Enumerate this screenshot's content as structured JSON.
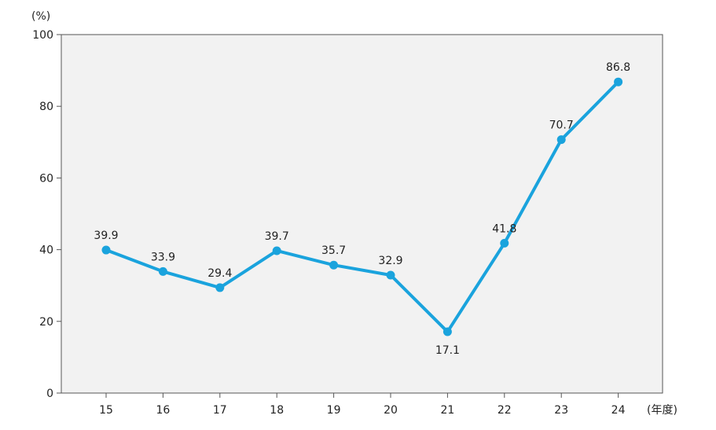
{
  "chart_data": {
    "type": "line",
    "title": "",
    "xlabel": "",
    "ylabel": "",
    "y_unit": "(%)",
    "x_unit": "(年度)",
    "categories": [
      "15",
      "16",
      "17",
      "18",
      "19",
      "20",
      "21",
      "22",
      "23",
      "24"
    ],
    "series": [
      {
        "name": "",
        "values": [
          39.9,
          33.9,
          29.4,
          39.7,
          35.7,
          32.9,
          17.1,
          41.8,
          70.7,
          86.8
        ],
        "labels": [
          "39.9",
          "33.9",
          "29.4",
          "39.7",
          "35.7",
          "32.9",
          "17.1",
          "41.8",
          "70.7",
          "86.8"
        ]
      }
    ],
    "ylim": [
      0,
      100
    ],
    "yticks": [
      "0",
      "20",
      "40",
      "60",
      "80",
      "100"
    ],
    "grid": false,
    "legend": "none"
  },
  "colors": {
    "plot_background": "#f2f2f2",
    "axis": "#555555",
    "series": "#1aa3dd"
  }
}
